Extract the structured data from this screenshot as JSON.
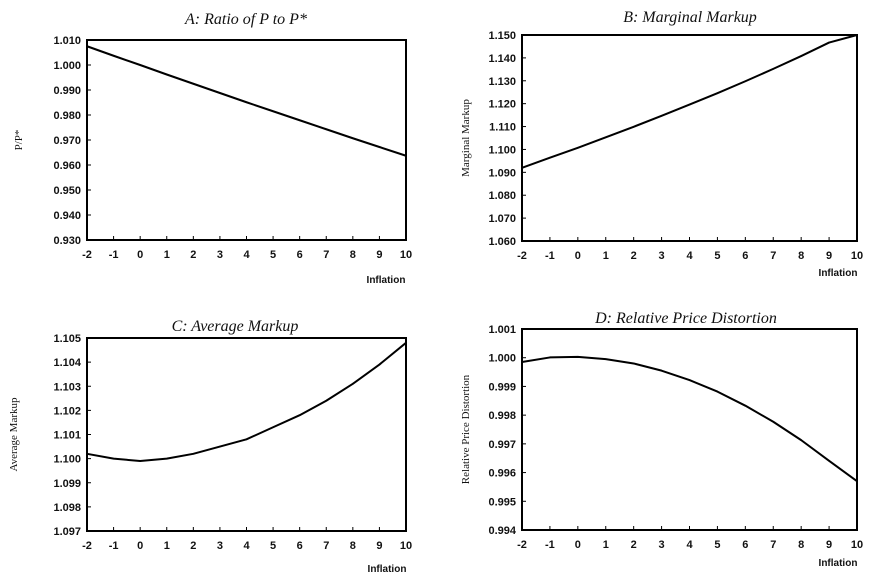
{
  "chart_data": [
    {
      "id": "A",
      "type": "line",
      "title": "A: Ratio of P to P*",
      "xlabel": "Inflation",
      "ylabel": "P/P*",
      "xlim": [
        -2,
        10
      ],
      "ylim": [
        0.93,
        1.01
      ],
      "xticks": [
        "-2",
        "-1",
        "0",
        "1",
        "2",
        "3",
        "4",
        "5",
        "6",
        "7",
        "8",
        "9",
        "10"
      ],
      "yticks": [
        "1.010",
        "1.000",
        "0.990",
        "0.980",
        "0.970",
        "0.960",
        "0.950",
        "0.940",
        "0.930"
      ],
      "grid": false,
      "series": [
        {
          "x": [
            -2,
            -1,
            0,
            1,
            2,
            3,
            4,
            5,
            6,
            7,
            8,
            9,
            10
          ],
          "y": [
            1.0075,
            1.0037,
            1.0,
            0.9962,
            0.9925,
            0.9888,
            0.9851,
            0.9815,
            0.9779,
            0.9743,
            0.9707,
            0.9672,
            0.9637
          ]
        }
      ]
    },
    {
      "id": "B",
      "type": "line",
      "title": "B: Marginal Markup",
      "xlabel": "Inflation",
      "ylabel": "Marginal Markup",
      "xlim": [
        -2,
        10
      ],
      "ylim": [
        1.06,
        1.15
      ],
      "xticks": [
        "-2",
        "-1",
        "0",
        "1",
        "2",
        "3",
        "4",
        "5",
        "6",
        "7",
        "8",
        "9",
        "10"
      ],
      "yticks": [
        "1.150",
        "1.140",
        "1.130",
        "1.120",
        "1.110",
        "1.100",
        "1.090",
        "1.080",
        "1.070",
        "1.060"
      ],
      "grid": false,
      "series": [
        {
          "x": [
            -2,
            -1,
            0,
            1,
            2,
            3,
            4,
            5,
            6,
            7,
            8,
            9,
            10
          ],
          "y": [
            1.092,
            1.0964,
            1.1007,
            1.1053,
            1.1099,
            1.1147,
            1.1196,
            1.1246,
            1.1298,
            1.1352,
            1.1408,
            1.1467,
            1.1528
          ]
        }
      ]
    },
    {
      "id": "C",
      "type": "line",
      "title": "C: Average Markup",
      "xlabel": "Inflation",
      "ylabel": "Average Markup",
      "xlim": [
        -2,
        10
      ],
      "ylim": [
        1.097,
        1.105
      ],
      "xticks": [
        "-2",
        "-1",
        "0",
        "1",
        "2",
        "3",
        "4",
        "5",
        "6",
        "7",
        "8",
        "9",
        "10"
      ],
      "yticks": [
        "1.105",
        "1.104",
        "1.103",
        "1.102",
        "1.101",
        "1.100",
        "1.099",
        "1.098",
        "1.097"
      ],
      "grid": false,
      "series": [
        {
          "x": [
            -2,
            -1,
            0,
            1,
            2,
            3,
            4,
            5,
            6,
            7,
            8,
            9,
            10
          ],
          "y": [
            1.1002,
            1.1,
            1.0999,
            1.1,
            1.1002,
            1.1005,
            1.1008,
            1.1013,
            1.1018,
            1.1024,
            1.1031,
            1.1039,
            1.1048
          ]
        }
      ]
    },
    {
      "id": "D",
      "type": "line",
      "title": "D: Relative Price Distortion",
      "xlabel": "Inflation",
      "ylabel": "Relative Price Distortion",
      "xlim": [
        -2,
        10
      ],
      "ylim": [
        0.994,
        1.001
      ],
      "xticks": [
        "-2",
        "-1",
        "0",
        "1",
        "2",
        "3",
        "4",
        "5",
        "6",
        "7",
        "8",
        "9",
        "10"
      ],
      "yticks": [
        "1.001",
        "1.000",
        "0.999",
        "0.998",
        "0.997",
        "0.996",
        "0.995",
        "0.994"
      ],
      "grid": false,
      "series": [
        {
          "x": [
            -2,
            -1,
            0,
            1,
            2,
            3,
            4,
            5,
            6,
            7,
            8,
            9,
            10
          ],
          "y": [
            0.99985,
            1.00001,
            1.00003,
            0.99995,
            0.9998,
            0.99955,
            0.99922,
            0.99882,
            0.99833,
            0.99777,
            0.99713,
            0.99641,
            0.9957
          ]
        }
      ]
    }
  ]
}
